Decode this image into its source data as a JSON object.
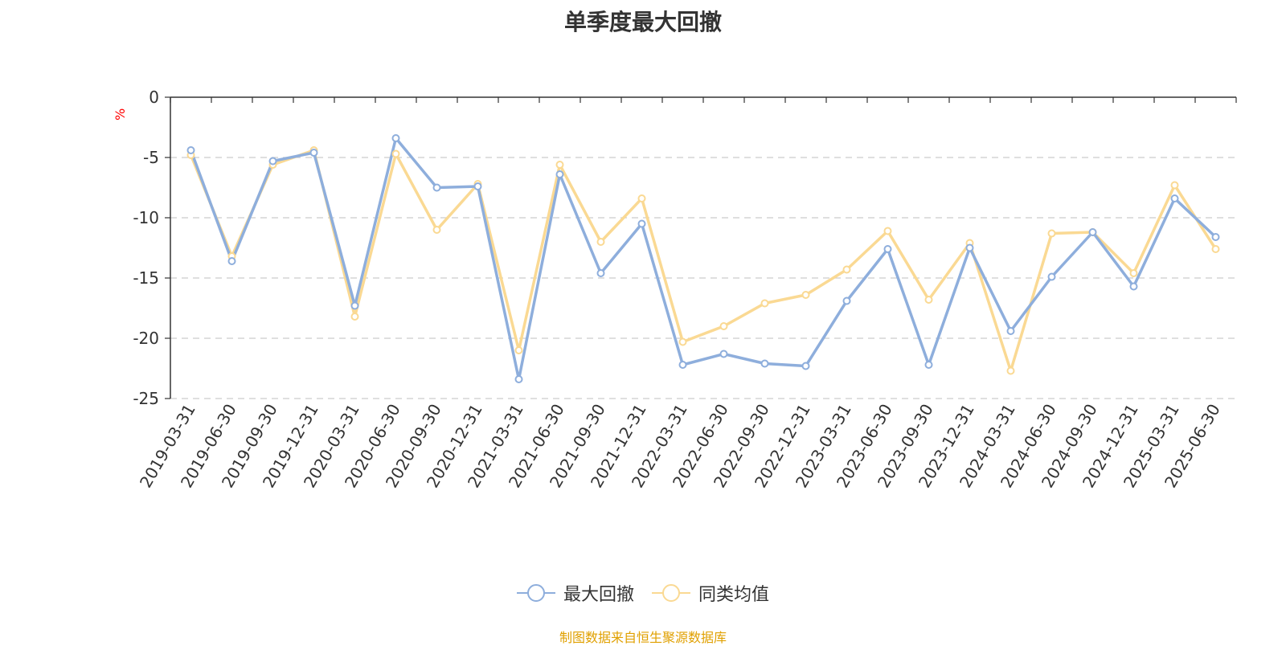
{
  "chart_data": {
    "type": "line",
    "title": "单季度最大回撤",
    "ylabel": "%",
    "ylim": [
      -25,
      0
    ],
    "yticks": [
      0,
      -5,
      -10,
      -15,
      -20,
      -25
    ],
    "grid": true,
    "legend_position": "bottom-center",
    "categories": [
      "2019-03-31",
      "2019-06-30",
      "2019-09-30",
      "2019-12-31",
      "2020-03-31",
      "2020-06-30",
      "2020-09-30",
      "2020-12-31",
      "2021-03-31",
      "2021-06-30",
      "2021-09-30",
      "2021-12-31",
      "2022-03-31",
      "2022-06-30",
      "2022-09-30",
      "2022-12-31",
      "2023-03-31",
      "2023-06-30",
      "2023-09-30",
      "2023-12-31",
      "2024-03-31",
      "2024-06-30",
      "2024-09-30",
      "2024-12-31",
      "2025-03-31",
      "2025-06-30"
    ],
    "series": [
      {
        "name": "最大回撤",
        "color": "#8eaedc",
        "values": [
          -4.4,
          -13.6,
          -5.3,
          -4.6,
          -17.3,
          -3.4,
          -7.5,
          -7.4,
          -23.4,
          -6.4,
          -14.6,
          -10.5,
          -22.2,
          -21.3,
          -22.1,
          -22.3,
          -16.9,
          -12.6,
          -22.2,
          -12.5,
          -19.4,
          -14.9,
          -11.2,
          -15.7,
          -8.4,
          -11.6
        ]
      },
      {
        "name": "同类均值",
        "color": "#fad993",
        "values": [
          -4.8,
          -13.2,
          -5.6,
          -4.4,
          -18.2,
          -4.7,
          -11.0,
          -7.2,
          -21.0,
          -5.6,
          -12.0,
          -8.4,
          -20.3,
          -19.0,
          -17.1,
          -16.4,
          -14.3,
          -11.1,
          -16.8,
          -12.1,
          -22.7,
          -11.3,
          -11.2,
          -14.6,
          -7.3,
          -12.6
        ]
      }
    ]
  },
  "source_text": "制图数据来自恒生聚源数据库"
}
